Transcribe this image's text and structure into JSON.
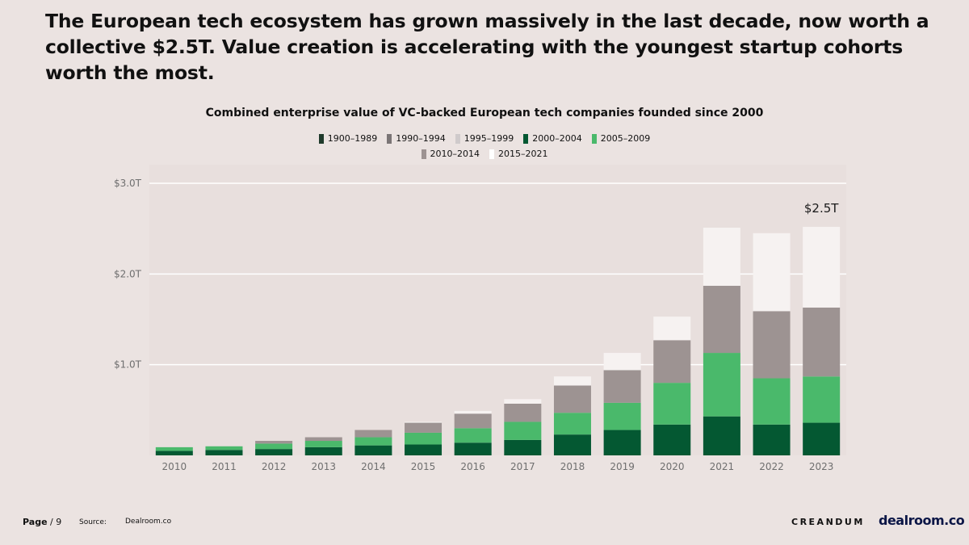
{
  "headline": "The European tech ecosystem has grown massively in the last decade, now worth a collective $2.5T. Value creation is accelerating with the youngest startup cohorts worth the most.",
  "footer": {
    "page_prefix": "Page",
    "page_suffix": " / 9",
    "source_label": "Source:",
    "source_value": "Dealroom.co",
    "logo_left": "CREANDUM",
    "logo_right": "dealroom.co"
  },
  "colors": {
    "background": "#ebe3e1",
    "gridline": "#ffffff",
    "axis_text": "#6f6f6f"
  },
  "chart_data": {
    "type": "bar",
    "stacked": true,
    "title": "Combined enterprise value of VC-backed European tech companies founded since 2000",
    "xlabel": "",
    "ylabel": "",
    "ylim": [
      0,
      3.0
    ],
    "yticks": [
      {
        "value": 1.0,
        "label": "$1.0T"
      },
      {
        "value": 2.0,
        "label": "$2.0T"
      },
      {
        "value": 3.0,
        "label": "$3.0T"
      }
    ],
    "grid": true,
    "legend_position": "top-center",
    "categories": [
      "2010",
      "2011",
      "2012",
      "2013",
      "2014",
      "2015",
      "2016",
      "2017",
      "2018",
      "2019",
      "2020",
      "2021",
      "2022",
      "2023"
    ],
    "series": [
      {
        "name": "1900–1989",
        "color": "#1f3a2b",
        "values": [
          0,
          0,
          0,
          0,
          0,
          0,
          0,
          0,
          0,
          0,
          0,
          0,
          0,
          0
        ]
      },
      {
        "name": "1990–1994",
        "color": "#7b7576",
        "values": [
          0,
          0,
          0,
          0,
          0,
          0,
          0,
          0,
          0,
          0,
          0,
          0,
          0,
          0
        ]
      },
      {
        "name": "1995–1999",
        "color": "#cfcacb",
        "values": [
          0,
          0,
          0,
          0,
          0,
          0,
          0,
          0,
          0,
          0,
          0,
          0,
          0,
          0
        ]
      },
      {
        "name": "2000–2004",
        "color": "#045832",
        "values": [
          0.05,
          0.06,
          0.07,
          0.09,
          0.11,
          0.12,
          0.14,
          0.17,
          0.23,
          0.28,
          0.34,
          0.43,
          0.34,
          0.36
        ]
      },
      {
        "name": "2005–2009",
        "color": "#4ab96b",
        "values": [
          0.04,
          0.04,
          0.06,
          0.07,
          0.09,
          0.13,
          0.16,
          0.2,
          0.24,
          0.3,
          0.46,
          0.7,
          0.51,
          0.51
        ]
      },
      {
        "name": "2010–2014",
        "color": "#9d9392",
        "values": [
          0,
          0,
          0.03,
          0.04,
          0.08,
          0.11,
          0.16,
          0.2,
          0.3,
          0.36,
          0.47,
          0.74,
          0.74,
          0.76
        ]
      },
      {
        "name": "2015–2021",
        "color": "#f6f2f1",
        "values": [
          0,
          0,
          0,
          0,
          0,
          0.01,
          0.03,
          0.05,
          0.1,
          0.19,
          0.26,
          0.64,
          0.86,
          0.89
        ]
      }
    ],
    "annotations": [
      {
        "category": "2023",
        "text": "$2.5T"
      }
    ]
  }
}
